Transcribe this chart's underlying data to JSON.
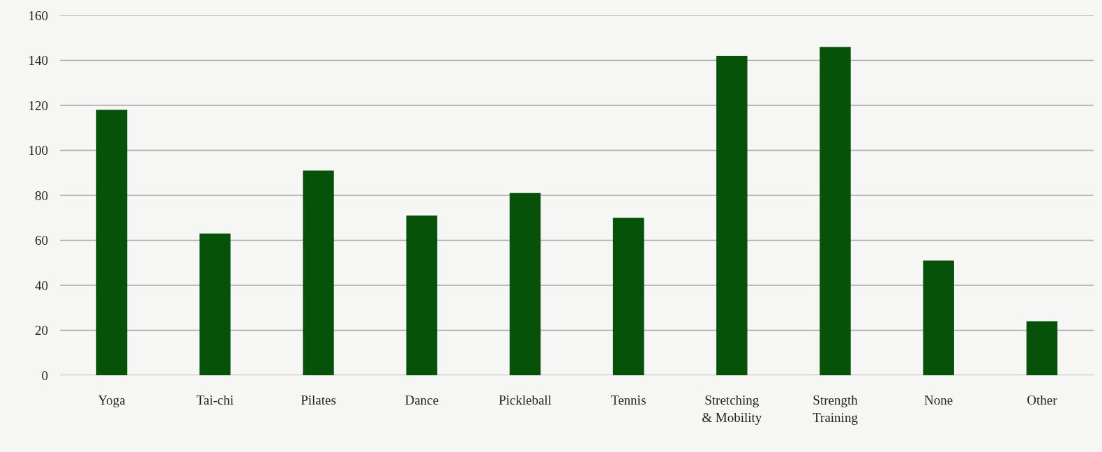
{
  "chart_data": {
    "type": "bar",
    "categories": [
      "Yoga",
      "Tai-chi",
      "Pilates",
      "Dance",
      "Pickleball",
      "Tennis",
      "Stretching & Mobility",
      "Strength Training",
      "None",
      "Other"
    ],
    "values": [
      118,
      63,
      91,
      71,
      81,
      70,
      142,
      146,
      51,
      24
    ],
    "color": "#065209",
    "ylim": [
      0,
      160
    ],
    "yticks": [
      0,
      20,
      40,
      60,
      80,
      100,
      120,
      140,
      160
    ],
    "grid": "y"
  }
}
